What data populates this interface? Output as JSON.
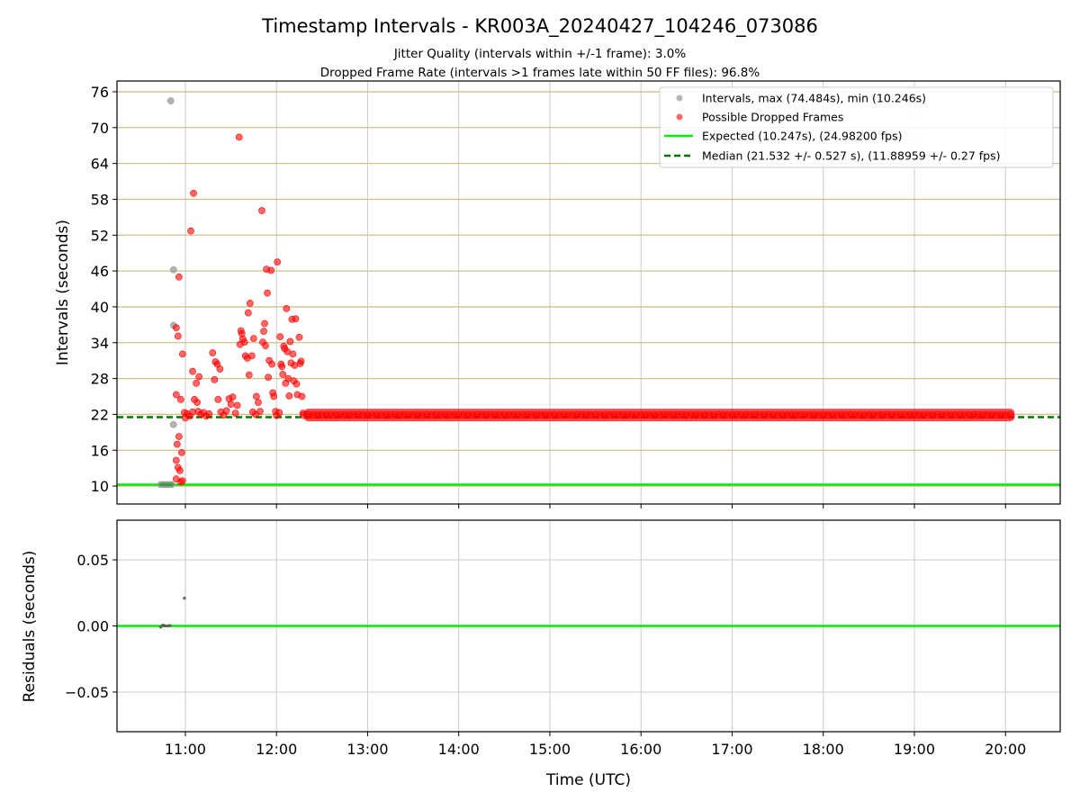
{
  "chart_data": [
    {
      "type": "scatter",
      "title": "Timestamp Intervals - KR003A_20240427_104246_073086",
      "subtitle_lines": [
        "Jitter Quality (intervals within +/-1 frame): 3.0%",
        "Dropped Frame Rate (intervals >1 frames late within 50 FF files): 96.8%"
      ],
      "xlabel": "",
      "ylabel": "Intervals (seconds)",
      "x_unit": "hours UTC",
      "xlim": [
        10.25,
        20.6
      ],
      "ylim": [
        7.0,
        77.8
      ],
      "yticks": [
        10,
        16,
        22,
        28,
        34,
        40,
        46,
        52,
        58,
        64,
        70,
        76
      ],
      "ytick_labels": [
        "10",
        "16",
        "22",
        "28",
        "34",
        "40",
        "46",
        "52",
        "58",
        "64",
        "70",
        "76"
      ],
      "horizontal_grid_color": "#cfc28a",
      "vertical_grid": true,
      "legend_position": "top-right",
      "legend": [
        "Intervals, max (74.484s), min (10.246s)",
        "Possible Dropped Frames",
        "Expected (10.247s), (24.98200 fps)",
        "Median (21.532 +/- 0.527 s), (11.88959 +/- 0.27 fps)"
      ],
      "expected_line": {
        "y": 10.247,
        "color": "#00ee00"
      },
      "median_line": {
        "y": 21.532,
        "color": "#007700",
        "style": "dashed"
      },
      "dense_band": {
        "x_start": 12.3,
        "x_end": 20.1,
        "y": 21.9,
        "color": "#ff0000"
      },
      "series": [
        {
          "kind": "intervals",
          "color": "#999999",
          "points": [
            [
              10.73,
              10.25
            ],
            [
              10.76,
              10.25
            ],
            [
              10.79,
              10.25
            ],
            [
              10.82,
              10.25
            ],
            [
              10.85,
              10.25
            ],
            [
              10.84,
              74.48
            ],
            [
              10.87,
              46.2
            ],
            [
              10.87,
              36.9
            ],
            [
              10.87,
              20.3
            ]
          ]
        },
        {
          "kind": "possible_dropped_frames",
          "color": "#ff0000",
          "points": [
            [
              10.9,
              36.5
            ],
            [
              10.92,
              35.1
            ],
            [
              10.93,
              45.0
            ],
            [
              10.97,
              32.1
            ],
            [
              10.9,
              25.3
            ],
            [
              10.95,
              24.5
            ],
            [
              10.91,
              17.0
            ],
            [
              10.93,
              18.3
            ],
            [
              10.96,
              15.6
            ],
            [
              10.9,
              14.3
            ],
            [
              10.92,
              13.1
            ],
            [
              10.94,
              12.6
            ],
            [
              10.9,
              11.2
            ],
            [
              10.95,
              10.7
            ],
            [
              10.97,
              10.9
            ],
            [
              10.99,
              22.3
            ],
            [
              11.02,
              22.1
            ],
            [
              11.05,
              21.7
            ],
            [
              11.08,
              22.4
            ],
            [
              11.0,
              21.4
            ],
            [
              11.06,
              52.7
            ],
            [
              11.09,
              59.0
            ],
            [
              11.08,
              29.2
            ],
            [
              11.12,
              27.2
            ],
            [
              11.15,
              28.3
            ],
            [
              11.1,
              24.5
            ],
            [
              11.13,
              24.0
            ],
            [
              11.14,
              22.5
            ],
            [
              11.17,
              22.0
            ],
            [
              11.2,
              22.3
            ],
            [
              11.23,
              21.7
            ],
            [
              11.26,
              22.1
            ],
            [
              11.3,
              32.3
            ],
            [
              11.33,
              30.8
            ],
            [
              11.35,
              30.4
            ],
            [
              11.32,
              27.8
            ],
            [
              11.38,
              29.6
            ],
            [
              11.36,
              24.5
            ],
            [
              11.39,
              22.4
            ],
            [
              11.42,
              21.9
            ],
            [
              11.45,
              22.6
            ],
            [
              11.48,
              24.6
            ],
            [
              11.5,
              23.7
            ],
            [
              11.52,
              24.9
            ],
            [
              11.55,
              22.2
            ],
            [
              11.57,
              23.5
            ],
            [
              11.59,
              68.4
            ],
            [
              11.61,
              36.0
            ],
            [
              11.62,
              35.5
            ],
            [
              11.6,
              33.7
            ],
            [
              11.63,
              34.6
            ],
            [
              11.65,
              34.1
            ],
            [
              11.66,
              31.8
            ],
            [
              11.68,
              31.4
            ],
            [
              11.69,
              39.0
            ],
            [
              11.71,
              40.6
            ],
            [
              11.7,
              28.6
            ],
            [
              11.73,
              31.8
            ],
            [
              11.75,
              34.7
            ],
            [
              11.74,
              22.4
            ],
            [
              11.77,
              22.0
            ],
            [
              11.78,
              25.0
            ],
            [
              11.8,
              24.0
            ],
            [
              11.82,
              22.5
            ],
            [
              11.84,
              56.1
            ],
            [
              11.85,
              34.1
            ],
            [
              11.86,
              35.9
            ],
            [
              11.87,
              37.2
            ],
            [
              11.88,
              33.5
            ],
            [
              11.89,
              46.3
            ],
            [
              11.9,
              42.3
            ],
            [
              11.92,
              31.0
            ],
            [
              11.91,
              28.2
            ],
            [
              11.94,
              46.1
            ],
            [
              11.95,
              30.4
            ],
            [
              11.96,
              25.6
            ],
            [
              11.97,
              25.0
            ],
            [
              11.99,
              22.5
            ],
            [
              12.0,
              21.8
            ],
            [
              12.01,
              47.5
            ],
            [
              12.03,
              22.3
            ],
            [
              12.04,
              35.0
            ],
            [
              12.05,
              30.4
            ],
            [
              12.06,
              30.0
            ],
            [
              12.07,
              28.7
            ],
            [
              12.08,
              33.4
            ],
            [
              12.09,
              33.0
            ],
            [
              12.1,
              27.2
            ],
            [
              12.11,
              39.7
            ],
            [
              12.12,
              32.5
            ],
            [
              12.13,
              28.0
            ],
            [
              12.14,
              25.1
            ],
            [
              12.15,
              34.2
            ],
            [
              12.16,
              30.6
            ],
            [
              12.17,
              37.9
            ],
            [
              12.18,
              32.1
            ],
            [
              12.19,
              27.6
            ],
            [
              12.2,
              30.2
            ],
            [
              12.21,
              38.0
            ],
            [
              12.22,
              27.1
            ],
            [
              12.23,
              25.3
            ],
            [
              12.25,
              34.9
            ],
            [
              12.26,
              30.5
            ],
            [
              12.27,
              30.9
            ],
            [
              12.28,
              25.0
            ],
            [
              12.29,
              22.2
            ]
          ]
        }
      ]
    },
    {
      "type": "scatter",
      "xlabel": "Time (UTC)",
      "ylabel": "Residuals (seconds)",
      "x_unit": "hours UTC",
      "xlim": [
        10.25,
        20.6
      ],
      "ylim": [
        -0.08,
        0.08
      ],
      "yticks": [
        -0.05,
        0.0,
        0.05
      ],
      "ytick_labels": [
        "−0.05",
        "0.00",
        "0.05"
      ],
      "xticks": [
        11,
        12,
        13,
        14,
        15,
        16,
        17,
        18,
        19,
        20
      ],
      "xtick_labels": [
        "11:00",
        "12:00",
        "13:00",
        "14:00",
        "15:00",
        "16:00",
        "17:00",
        "18:00",
        "19:00",
        "20:00"
      ],
      "grid": true,
      "zero_line": {
        "y": 0.0,
        "color": "#00ee00"
      },
      "series": [
        {
          "kind": "residuals",
          "color": "#555555",
          "points": [
            [
              10.73,
              -0.0008
            ],
            [
              10.75,
              0.0005
            ],
            [
              10.77,
              0.0002
            ],
            [
              10.8,
              0.0
            ],
            [
              10.83,
              0.0003
            ],
            [
              10.99,
              0.021
            ]
          ]
        }
      ]
    }
  ]
}
